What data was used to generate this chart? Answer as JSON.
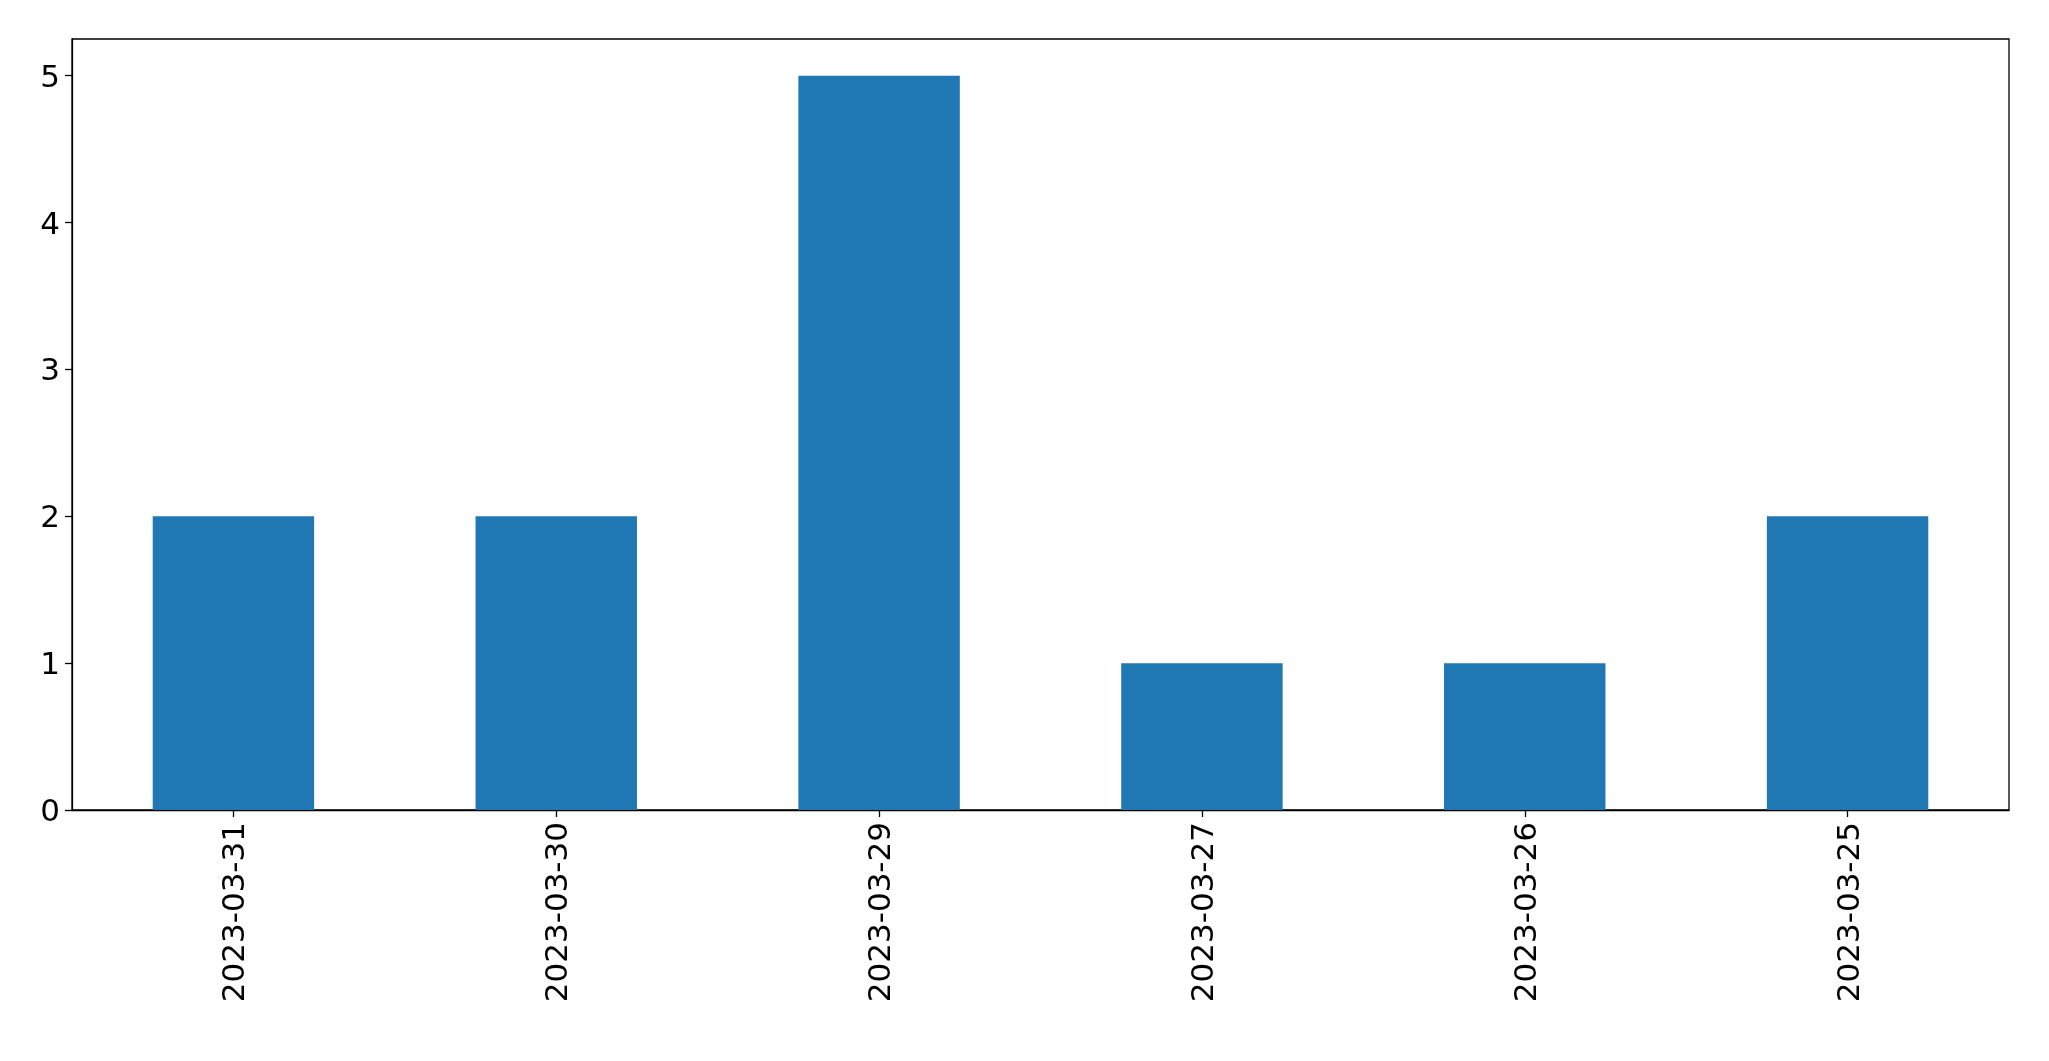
{
  "chart_data": {
    "type": "bar",
    "categories": [
      "2023-03-31",
      "2023-03-30",
      "2023-03-29",
      "2023-03-27",
      "2023-03-26",
      "2023-03-25"
    ],
    "values": [
      2,
      2,
      5,
      1,
      1,
      2
    ],
    "color": "#1f77b4",
    "ylim": [
      0,
      5.25
    ],
    "yticks": [
      0,
      1,
      2,
      3,
      4,
      5
    ]
  }
}
